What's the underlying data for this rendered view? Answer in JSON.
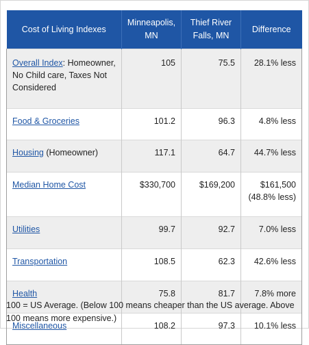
{
  "table": {
    "headers": [
      "Cost of Living Indexes",
      "Minneapolis, MN",
      "Thief River Falls, MN",
      "Difference"
    ],
    "rows": [
      {
        "link": "Overall Index",
        "rest": ": Homeowner, No Child care, Taxes Not Considered",
        "minneapolis": "105",
        "thief_river_falls": "75.5",
        "difference": "28.1% less",
        "difference_note": ""
      },
      {
        "link": "Food & Groceries",
        "rest": "",
        "minneapolis": "101.2",
        "thief_river_falls": "96.3",
        "difference": "4.8% less",
        "difference_note": ""
      },
      {
        "link": "Housing",
        "rest": " (Homeowner)",
        "minneapolis": "117.1",
        "thief_river_falls": "64.7",
        "difference": "44.7% less",
        "difference_note": ""
      },
      {
        "link": "Median Home Cost",
        "rest": "",
        "minneapolis": "$330,700",
        "thief_river_falls": "$169,200",
        "difference": "$161,500",
        "difference_note": "(48.8% less)"
      },
      {
        "link": "Utilities",
        "rest": "",
        "minneapolis": "99.7",
        "thief_river_falls": "92.7",
        "difference": "7.0% less",
        "difference_note": ""
      },
      {
        "link": "Transportation",
        "rest": "",
        "minneapolis": "108.5",
        "thief_river_falls": "62.3",
        "difference": "42.6% less",
        "difference_note": ""
      },
      {
        "link": "Health",
        "rest": "",
        "minneapolis": "75.8",
        "thief_river_falls": "81.7",
        "difference": "7.8% more",
        "difference_note": ""
      },
      {
        "link": "Miscellaneous",
        "rest": "",
        "minneapolis": "108.2",
        "thief_river_falls": "97.3",
        "difference": "10.1% less",
        "difference_note": ""
      }
    ]
  },
  "footnote": "100 = US Average. (Below 100 means cheaper than the US average. Above 100 means more expensive.)",
  "colors": {
    "header_bg": "#1f56a5",
    "link": "#1f56a5",
    "shaded_row": "#eeeeee"
  }
}
